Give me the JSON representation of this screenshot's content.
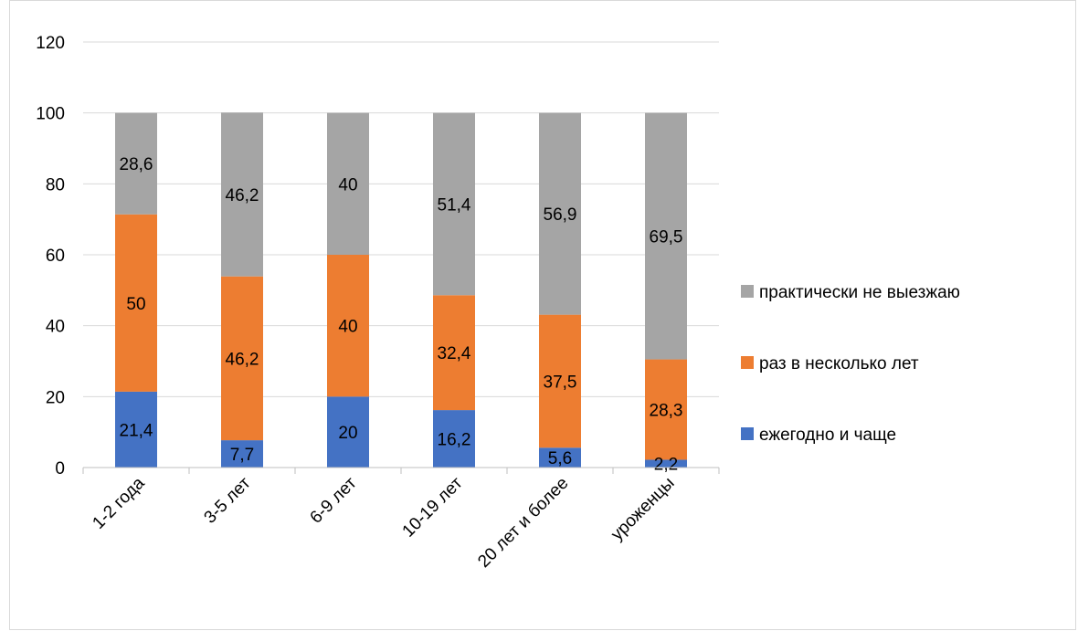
{
  "chart_data": {
    "type": "bar",
    "stacked": true,
    "categories": [
      "1-2 года",
      "3-5 лет",
      "6-9 лет",
      "10-19 лет",
      "20 лет и более",
      "уроженцы"
    ],
    "series": [
      {
        "name": "ежегодно и чаще",
        "color": "#4472C4",
        "values": [
          21.4,
          7.7,
          20,
          16.2,
          5.6,
          2.2
        ],
        "labels": [
          "21,4",
          "7,7",
          "20",
          "16,2",
          "5,6",
          "2,2"
        ]
      },
      {
        "name": "раз в несколько лет",
        "color": "#ED7D31",
        "values": [
          50,
          46.2,
          40,
          32.4,
          37.5,
          28.3
        ],
        "labels": [
          "50",
          "46,2",
          "40",
          "32,4",
          "37,5",
          "28,3"
        ]
      },
      {
        "name": "практически не выезжаю",
        "color": "#A5A5A5",
        "values": [
          28.6,
          46.2,
          40,
          51.4,
          56.9,
          69.5
        ],
        "labels": [
          "28,6",
          "46,2",
          "40",
          "51,4",
          "56,9",
          "69,5"
        ]
      }
    ],
    "ylim": [
      0,
      120
    ],
    "yticks": [
      0,
      20,
      40,
      60,
      80,
      100,
      120
    ],
    "grid": true,
    "legend_position": "right"
  }
}
